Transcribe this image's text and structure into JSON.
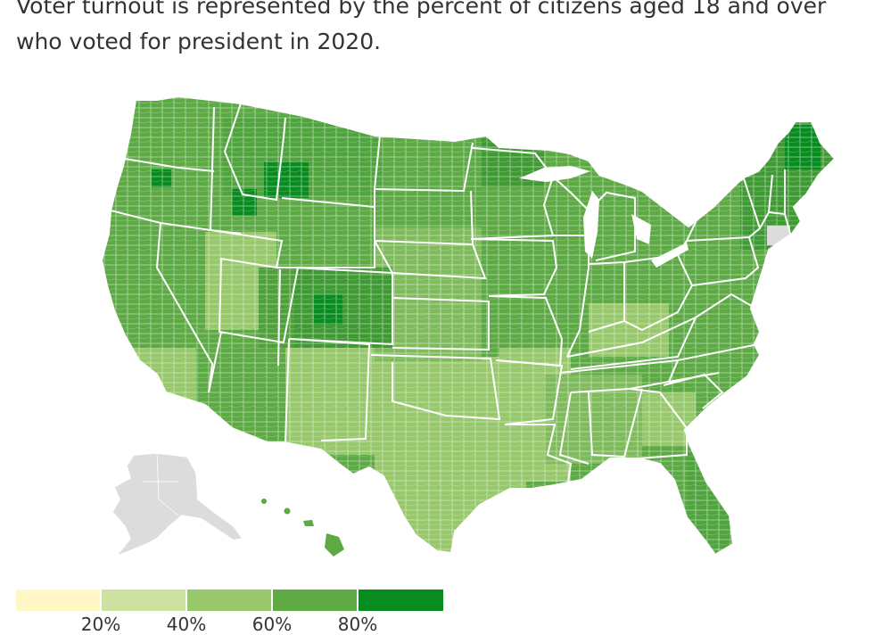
{
  "subtitle": {
    "line1": "Voter turnout is represented by the percent of citizens aged 18 and over",
    "line2": "who voted for president in 2020."
  },
  "legend": {
    "bins": [
      {
        "color": "#fff8c4"
      },
      {
        "color": "#cde1a1"
      },
      {
        "color": "#98c86c"
      },
      {
        "color": "#5daa45"
      },
      {
        "color": "#088c1f"
      }
    ],
    "labels": [
      "20%",
      "40%",
      "60%",
      "80%"
    ]
  },
  "colors": {
    "no_data": "#dcdcdc",
    "border": "#ffffff"
  }
}
